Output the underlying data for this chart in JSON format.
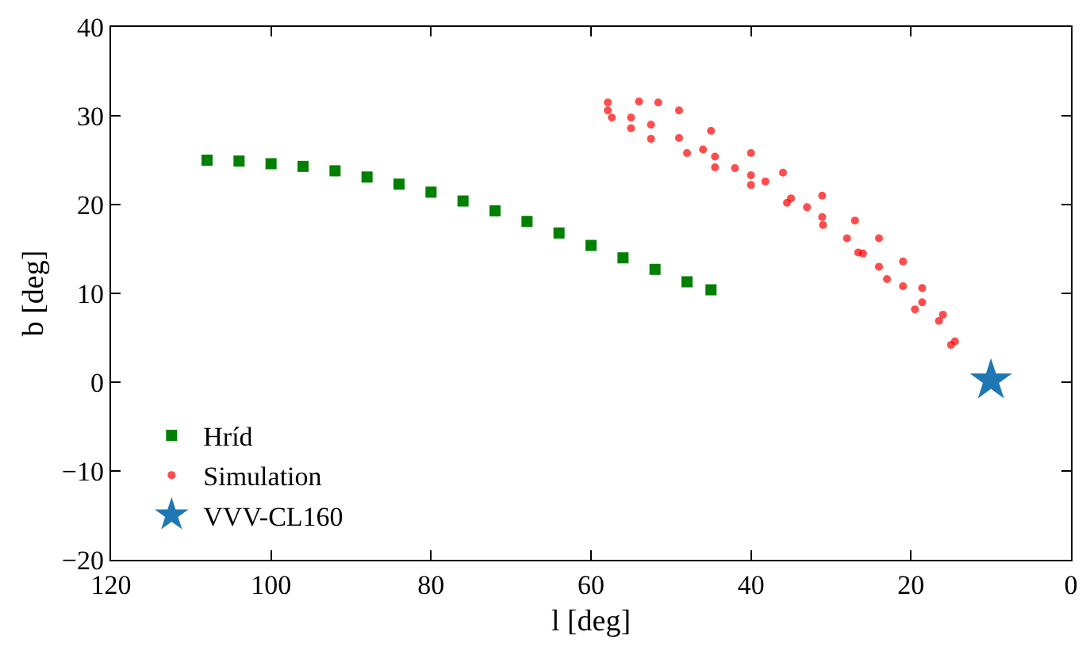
{
  "chart_data": {
    "type": "scatter",
    "xlabel": "l [deg]",
    "ylabel": "b [deg]",
    "xlim": [
      120,
      0
    ],
    "xticks": [
      120,
      100,
      80,
      60,
      40,
      20,
      0
    ],
    "ylim": [
      -20,
      40
    ],
    "yticks": [
      -20,
      -10,
      0,
      10,
      20,
      30,
      40
    ],
    "legend": "bottom left",
    "series": [
      {
        "name": "Hríd",
        "color": "#008000",
        "marker": "square",
        "x": [
          108,
          104,
          100,
          96,
          92,
          88,
          84,
          80,
          76,
          72,
          68,
          64,
          60,
          56,
          52,
          48,
          45
        ],
        "values": [
          25.0,
          24.9,
          24.6,
          24.3,
          23.8,
          23.1,
          22.3,
          21.4,
          20.4,
          19.3,
          18.1,
          16.8,
          15.4,
          14.0,
          12.7,
          11.3,
          10.4
        ]
      },
      {
        "name": "Simulation",
        "color": "#ff0000",
        "marker": "circle",
        "x": [
          57.9,
          55,
          52.5,
          49,
          46,
          44.5,
          42,
          40,
          38.2,
          35,
          33,
          31.1,
          28,
          26,
          24,
          21,
          18.6,
          16.5,
          14.5,
          57.9,
          54,
          51.6,
          49,
          45,
          40,
          36,
          31.1,
          27,
          24,
          21,
          18.6,
          16,
          57.4,
          55,
          52.5,
          48,
          44.5,
          40,
          35.5,
          31,
          26.6,
          23,
          19.5,
          15
        ],
        "values": [
          30.6,
          29.8,
          29.0,
          27.5,
          26.2,
          25.4,
          24.1,
          23.3,
          22.6,
          20.7,
          19.7,
          18.6,
          16.2,
          14.5,
          13.0,
          10.8,
          9.0,
          6.9,
          4.6,
          31.5,
          31.6,
          31.5,
          30.6,
          28.3,
          25.8,
          23.6,
          21.0,
          18.2,
          16.2,
          13.6,
          10.6,
          7.6,
          29.8,
          28.6,
          27.4,
          25.8,
          24.2,
          22.2,
          20.2,
          17.7,
          14.6,
          11.6,
          8.2,
          4.2
        ]
      },
      {
        "name": "VVV-CL160",
        "color": "#1f77b4",
        "marker": "star",
        "x": [
          10
        ],
        "values": [
          0.2
        ]
      }
    ]
  }
}
